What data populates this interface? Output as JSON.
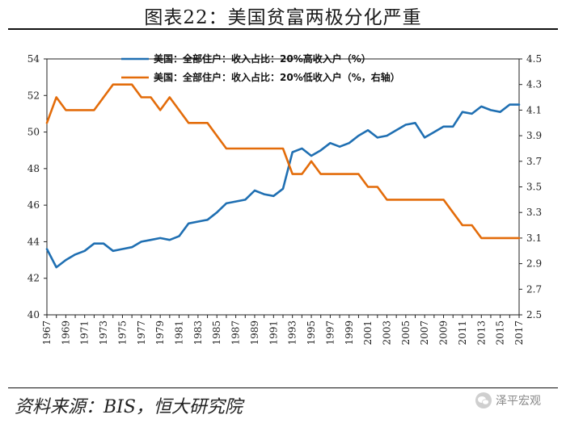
{
  "title": "图表22：美国贫富两极分化严重",
  "source": "资料来源：BIS，恒大研究院",
  "watermark": "泽平宏观",
  "colors": {
    "blue": "#1f6fb2",
    "orange": "#e36c0a"
  },
  "chart_data": {
    "type": "line",
    "x": [
      1967,
      1968,
      1969,
      1970,
      1971,
      1972,
      1973,
      1974,
      1975,
      1976,
      1977,
      1978,
      1979,
      1980,
      1981,
      1982,
      1983,
      1984,
      1985,
      1986,
      1987,
      1988,
      1989,
      1990,
      1991,
      1992,
      1993,
      1994,
      1995,
      1996,
      1997,
      1998,
      1999,
      2000,
      2001,
      2002,
      2003,
      2004,
      2005,
      2006,
      2007,
      2008,
      2009,
      2010,
      2011,
      2012,
      2013,
      2014,
      2015,
      2016,
      2017
    ],
    "xticks": [
      "1967",
      "1969",
      "1971",
      "1973",
      "1975",
      "1977",
      "1979",
      "1981",
      "1983",
      "1985",
      "1987",
      "1989",
      "1991",
      "1993",
      "1995",
      "1997",
      "1999",
      "2001",
      "2003",
      "2005",
      "2007",
      "2009",
      "2011",
      "2013",
      "2015",
      "2017"
    ],
    "yleft": {
      "ylim": [
        40,
        54
      ],
      "ticks": [
        "40",
        "42",
        "44",
        "46",
        "48",
        "50",
        "52",
        "54"
      ]
    },
    "yright": {
      "ylim": [
        2.5,
        4.5
      ],
      "ticks": [
        "2.5",
        "2.7",
        "2.9",
        "3.1",
        "3.3",
        "3.5",
        "3.7",
        "3.9",
        "4.1",
        "4.3",
        "4.5"
      ]
    },
    "series": [
      {
        "name": "美国：全部住户：收入占比：20%高收入户（%）",
        "axis": "left",
        "color": "#1f6fb2",
        "values": [
          43.6,
          42.6,
          43.0,
          43.3,
          43.5,
          43.9,
          43.9,
          43.5,
          43.6,
          43.7,
          44.0,
          44.1,
          44.2,
          44.1,
          44.3,
          45.0,
          45.1,
          45.2,
          45.6,
          46.1,
          46.2,
          46.3,
          46.8,
          46.6,
          46.5,
          46.9,
          48.9,
          49.1,
          48.7,
          49.0,
          49.4,
          49.2,
          49.4,
          49.8,
          50.1,
          49.7,
          49.8,
          50.1,
          50.4,
          50.5,
          49.7,
          50.0,
          50.3,
          50.3,
          51.1,
          51.0,
          51.4,
          51.2,
          51.1,
          51.5,
          51.5
        ]
      },
      {
        "name": "美国：全部住户：收入占比：20%低收入户（%，右轴）",
        "axis": "right",
        "color": "#e36c0a",
        "values": [
          4.0,
          4.2,
          4.1,
          4.1,
          4.1,
          4.1,
          4.2,
          4.3,
          4.3,
          4.3,
          4.2,
          4.2,
          4.1,
          4.2,
          4.1,
          4.0,
          4.0,
          4.0,
          3.9,
          3.8,
          3.8,
          3.8,
          3.8,
          3.8,
          3.8,
          3.8,
          3.6,
          3.6,
          3.7,
          3.6,
          3.6,
          3.6,
          3.6,
          3.6,
          3.5,
          3.5,
          3.4,
          3.4,
          3.4,
          3.4,
          3.4,
          3.4,
          3.4,
          3.3,
          3.2,
          3.2,
          3.1,
          3.1,
          3.1,
          3.1,
          3.1
        ]
      }
    ]
  }
}
